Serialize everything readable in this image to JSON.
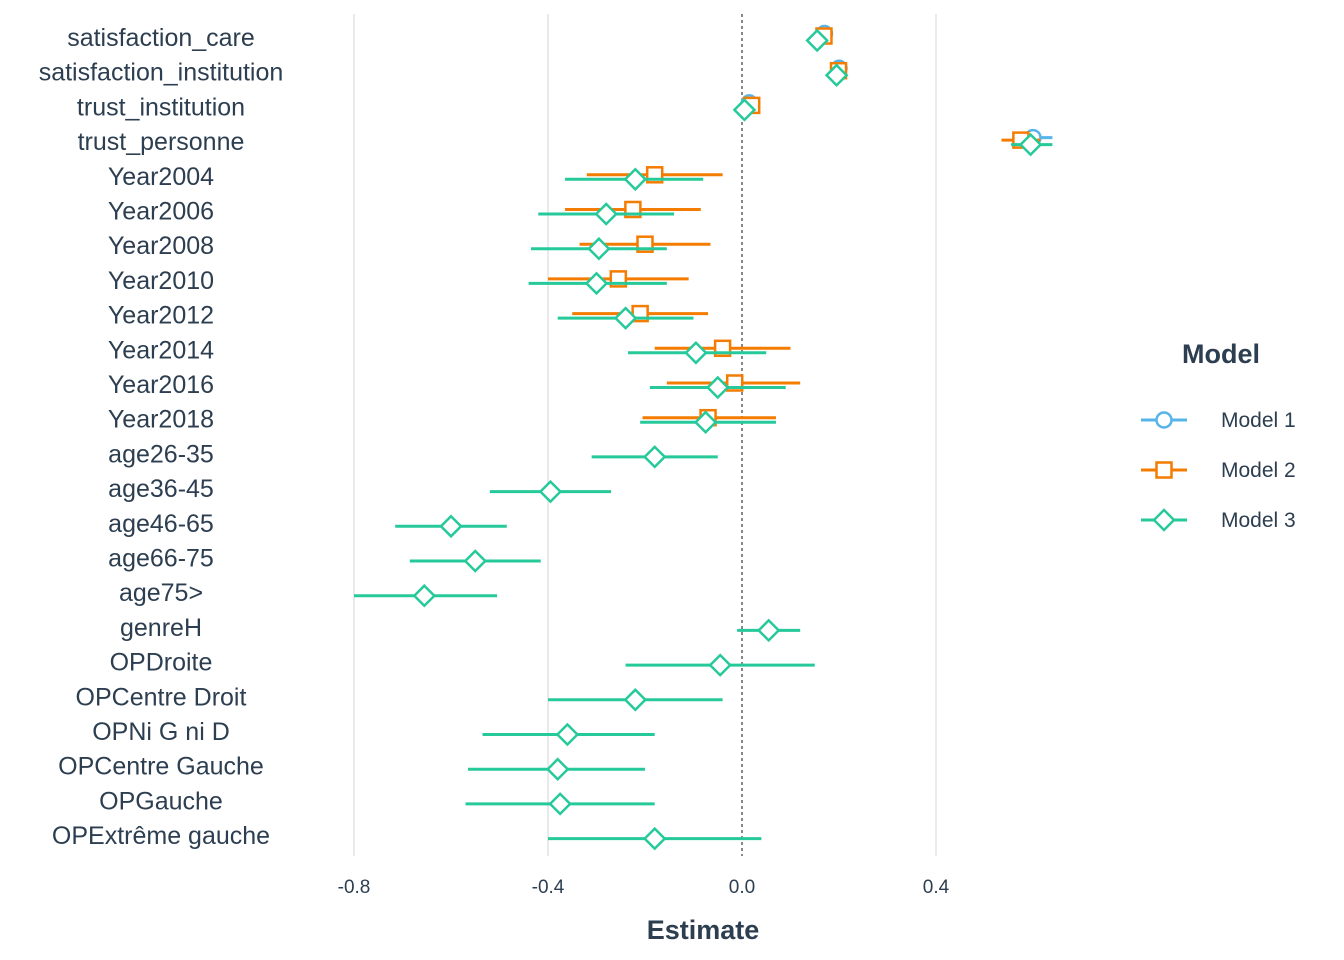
{
  "chart_data": {
    "type": "forest",
    "xlabel": "Estimate",
    "xlim": [
      -0.88,
      0.6
    ],
    "xticks": [
      -0.8,
      -0.4,
      0.0,
      0.4
    ],
    "xtick_labels": [
      "-0.8",
      "-0.4",
      "0.0",
      "0.4"
    ],
    "reference_line": 0.0,
    "grid": "vertical major",
    "legend_position": "right",
    "legend_title": "Model",
    "terms": [
      "satisfaction_care",
      "satisfaction_institution",
      "trust_institution",
      "trust_personne",
      "Year2004",
      "Year2006",
      "Year2008",
      "Year2010",
      "Year2012",
      "Year2014",
      "Year2016",
      "Year2018",
      "age26-35",
      "age36-45",
      "age46-65",
      "age66-75",
      "age75>",
      "genreH",
      "OPDroite",
      "OPCentre Droit",
      "OPNi G ni D",
      "OPCentre Gauche",
      "OPGauche",
      "OPExtrême gauche"
    ],
    "series": [
      {
        "name": "Model 1",
        "color": "#56b4e9",
        "shape": "circle",
        "points": [
          {
            "term": "satisfaction_care",
            "estimate": 0.17,
            "low": 0.162,
            "high": 0.178
          },
          {
            "term": "satisfaction_institution",
            "estimate": 0.2,
            "low": 0.192,
            "high": 0.208
          },
          {
            "term": "trust_institution",
            "estimate": 0.015,
            "low": 0.0,
            "high": 0.03
          },
          {
            "term": "trust_personne",
            "estimate": 0.6,
            "low": 0.56,
            "high": 0.64
          }
        ]
      },
      {
        "name": "Model 2",
        "color": "#f47c00",
        "shape": "square",
        "points": [
          {
            "term": "satisfaction_care",
            "estimate": 0.169,
            "low": 0.161,
            "high": 0.177
          },
          {
            "term": "satisfaction_institution",
            "estimate": 0.199,
            "low": 0.191,
            "high": 0.207
          },
          {
            "term": "trust_institution",
            "estimate": 0.02,
            "low": 0.004,
            "high": 0.036
          },
          {
            "term": "trust_personne",
            "estimate": 0.575,
            "low": 0.535,
            "high": 0.615
          },
          {
            "term": "Year2004",
            "estimate": -0.18,
            "low": -0.32,
            "high": -0.04
          },
          {
            "term": "Year2006",
            "estimate": -0.225,
            "low": -0.365,
            "high": -0.085
          },
          {
            "term": "Year2008",
            "estimate": -0.2,
            "low": -0.335,
            "high": -0.065
          },
          {
            "term": "Year2010",
            "estimate": -0.255,
            "low": -0.4,
            "high": -0.11
          },
          {
            "term": "Year2012",
            "estimate": -0.21,
            "low": -0.35,
            "high": -0.07
          },
          {
            "term": "Year2014",
            "estimate": -0.04,
            "low": -0.18,
            "high": 0.1
          },
          {
            "term": "Year2016",
            "estimate": -0.015,
            "low": -0.155,
            "high": 0.12
          },
          {
            "term": "Year2018",
            "estimate": -0.07,
            "low": -0.205,
            "high": 0.07
          }
        ]
      },
      {
        "name": "Model 3",
        "color": "#26c99a",
        "shape": "diamond",
        "points": [
          {
            "term": "satisfaction_care",
            "estimate": 0.155,
            "low": 0.147,
            "high": 0.163
          },
          {
            "term": "satisfaction_institution",
            "estimate": 0.195,
            "low": 0.187,
            "high": 0.203
          },
          {
            "term": "trust_institution",
            "estimate": 0.005,
            "low": -0.01,
            "high": 0.02
          },
          {
            "term": "trust_personne",
            "estimate": 0.595,
            "low": 0.555,
            "high": 0.64
          },
          {
            "term": "Year2004",
            "estimate": -0.22,
            "low": -0.365,
            "high": -0.08
          },
          {
            "term": "Year2006",
            "estimate": -0.28,
            "low": -0.42,
            "high": -0.14
          },
          {
            "term": "Year2008",
            "estimate": -0.295,
            "low": -0.435,
            "high": -0.155
          },
          {
            "term": "Year2010",
            "estimate": -0.3,
            "low": -0.44,
            "high": -0.155
          },
          {
            "term": "Year2012",
            "estimate": -0.24,
            "low": -0.38,
            "high": -0.1
          },
          {
            "term": "Year2014",
            "estimate": -0.095,
            "low": -0.235,
            "high": 0.05
          },
          {
            "term": "Year2016",
            "estimate": -0.05,
            "low": -0.19,
            "high": 0.09
          },
          {
            "term": "Year2018",
            "estimate": -0.075,
            "low": -0.21,
            "high": 0.07
          },
          {
            "term": "age26-35",
            "estimate": -0.18,
            "low": -0.31,
            "high": -0.05
          },
          {
            "term": "age36-45",
            "estimate": -0.395,
            "low": -0.52,
            "high": -0.27
          },
          {
            "term": "age46-65",
            "estimate": -0.6,
            "low": -0.715,
            "high": -0.485
          },
          {
            "term": "age66-75",
            "estimate": -0.55,
            "low": -0.685,
            "high": -0.415
          },
          {
            "term": "age75>",
            "estimate": -0.655,
            "low": -0.8,
            "high": -0.505
          },
          {
            "term": "genreH",
            "estimate": 0.055,
            "low": -0.01,
            "high": 0.12
          },
          {
            "term": "OPDroite",
            "estimate": -0.045,
            "low": -0.24,
            "high": 0.15
          },
          {
            "term": "OPCentre Droit",
            "estimate": -0.22,
            "low": -0.4,
            "high": -0.04
          },
          {
            "term": "OPNi G ni D",
            "estimate": -0.36,
            "low": -0.535,
            "high": -0.18
          },
          {
            "term": "OPCentre Gauche",
            "estimate": -0.38,
            "low": -0.565,
            "high": -0.2
          },
          {
            "term": "OPGauche",
            "estimate": -0.375,
            "low": -0.57,
            "high": -0.18
          },
          {
            "term": "OPExtrême gauche",
            "estimate": -0.18,
            "low": -0.4,
            "high": 0.04
          }
        ]
      }
    ]
  }
}
